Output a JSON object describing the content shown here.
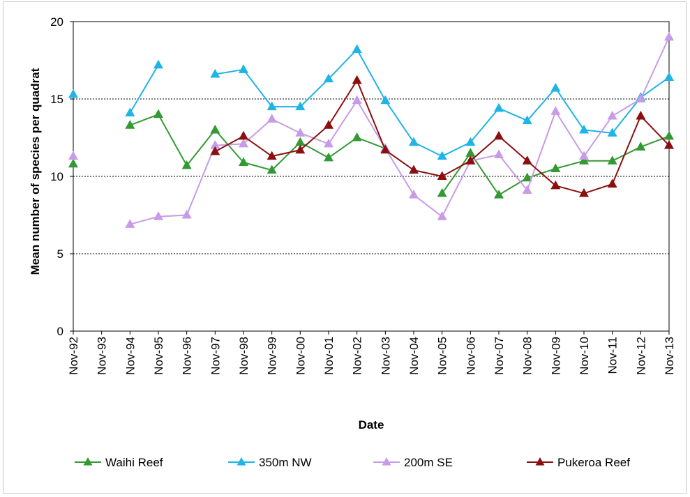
{
  "chart_data": {
    "type": "line",
    "title": "",
    "xlabel": "Date",
    "ylabel": "Mean number of species per quadrat",
    "ylim": [
      0,
      20
    ],
    "yticks": [
      0,
      5,
      10,
      15,
      20
    ],
    "grid": "horizontal dotted at 5, 10, 15",
    "legend_position": "bottom",
    "categories": [
      "Nov-92",
      "Nov-93",
      "Nov-94",
      "Nov-95",
      "Nov-96",
      "Nov-97",
      "Nov-98",
      "Nov-99",
      "Nov-00",
      "Nov-01",
      "Nov-02",
      "Nov-03",
      "Nov-04",
      "Nov-05",
      "Nov-06",
      "Nov-07",
      "Nov-08",
      "Nov-09",
      "Nov-10",
      "Nov-11",
      "Nov-12",
      "Nov-13"
    ],
    "series": [
      {
        "name": "Waihi Reef",
        "color": "#339933",
        "values": [
          10.8,
          null,
          13.3,
          14.0,
          10.7,
          13.0,
          10.9,
          10.4,
          12.2,
          11.2,
          12.5,
          11.8,
          null,
          8.9,
          11.5,
          8.8,
          9.9,
          10.5,
          11.0,
          11.0,
          11.9,
          12.6
        ]
      },
      {
        "name": "350m NW",
        "color": "#1EB4E6",
        "values": [
          15.3,
          null,
          14.1,
          17.2,
          null,
          16.6,
          16.9,
          14.5,
          14.5,
          16.3,
          18.2,
          14.9,
          12.2,
          11.3,
          12.2,
          14.4,
          13.6,
          15.7,
          13.0,
          12.8,
          15.1,
          16.4
        ]
      },
      {
        "name": "200m SE",
        "color": "#C89BE6",
        "values": [
          11.3,
          null,
          6.9,
          7.4,
          7.5,
          12.0,
          12.1,
          13.7,
          12.8,
          12.1,
          14.9,
          11.8,
          8.8,
          7.4,
          11.0,
          11.4,
          9.1,
          14.2,
          11.3,
          13.9,
          15.0,
          19.0
        ]
      },
      {
        "name": "Pukeroa Reef",
        "color": "#8B0F0F",
        "values": [
          null,
          null,
          null,
          null,
          null,
          11.6,
          12.6,
          11.3,
          11.7,
          13.3,
          16.2,
          11.7,
          10.4,
          10.0,
          11.0,
          12.6,
          11.0,
          9.4,
          8.9,
          9.5,
          13.9,
          12.0
        ]
      }
    ]
  }
}
